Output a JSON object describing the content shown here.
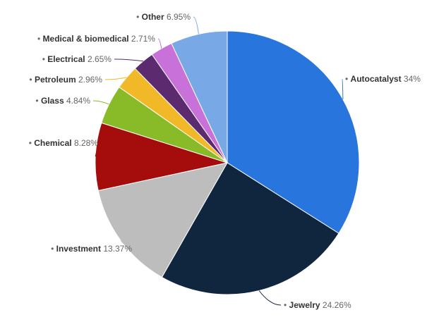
{
  "chart_data": {
    "type": "pie",
    "slices": [
      {
        "label": "Autocatalyst",
        "value": 34,
        "value_text": "34%",
        "color": "#2876dd"
      },
      {
        "label": "Jewelry",
        "value": 24.26,
        "value_text": "24.26%",
        "color": "#10263f"
      },
      {
        "label": "Investment",
        "value": 13.37,
        "value_text": "13.37%",
        "color": "#bdbdbd"
      },
      {
        "label": "Chemical",
        "value": 8.28,
        "value_text": "8.28%",
        "color": "#a50c0c"
      },
      {
        "label": "Glass",
        "value": 4.84,
        "value_text": "4.84%",
        "color": "#88bb27"
      },
      {
        "label": "Petroleum",
        "value": 2.96,
        "value_text": "2.96%",
        "color": "#f1b827"
      },
      {
        "label": "Electrical",
        "value": 2.65,
        "value_text": "2.65%",
        "color": "#5b2a6f"
      },
      {
        "label": "Medical & biomedical",
        "value": 2.71,
        "value_text": "2.71%",
        "color": "#c771d9"
      },
      {
        "label": "Other",
        "value": 6.95,
        "value_text": "6.95%",
        "color": "#78a8e6"
      }
    ],
    "start_angle": "12 o'clock, clockwise",
    "legend": "none (labels beside slices)"
  }
}
